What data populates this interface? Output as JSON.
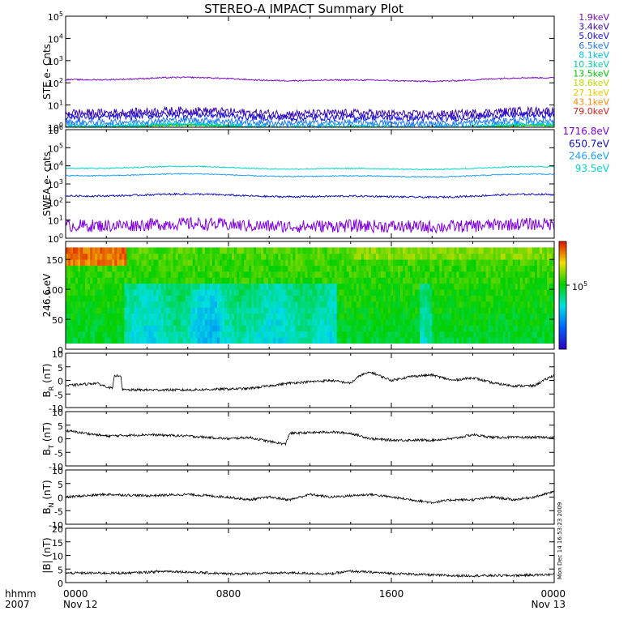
{
  "title": "STEREO-A IMPACT Summary Plot",
  "credit": "Mon Dec 14 16:53:23 2009",
  "chart_data": [
    {
      "panel": "ste",
      "type": "line",
      "ylabel": "STE e- Cnts",
      "yscale": "log",
      "ylim": [
        1,
        100000
      ],
      "yticks": [
        "10^0",
        "10^1",
        "10^2",
        "10^3",
        "10^4",
        "10^5"
      ],
      "legend_position": "right",
      "series": [
        {
          "name": "1.9keV",
          "color": "#7a0cc8",
          "level": 140,
          "noise": 0.03
        },
        {
          "name": "3.4keV",
          "color": "#3a0ab0",
          "level": 4.5,
          "noise": 0.18
        },
        {
          "name": "5.0keV",
          "color": "#1a10e0",
          "level": 3.0,
          "noise": 0.15
        },
        {
          "name": "6.5keV",
          "color": "#1e78ff",
          "level": 1.7,
          "noise": 0.14
        },
        {
          "name": "8.1keV",
          "color": "#00c0e0",
          "level": 1.2,
          "noise": 0.1
        },
        {
          "name": "10.3keV",
          "color": "#00d0a0",
          "level": 1.05,
          "noise": 0.06
        },
        {
          "name": "13.5keV",
          "color": "#00c800",
          "level": 1.0,
          "noise": 0.05
        },
        {
          "name": "18.6keV",
          "color": "#b8dc00",
          "level": 1.0,
          "noise": 0.04
        },
        {
          "name": "27.1keV",
          "color": "#f0c800",
          "level": 1.0,
          "noise": 0.03
        },
        {
          "name": "43.1keV",
          "color": "#ff8c00",
          "level": 1.0,
          "noise": 0.02
        },
        {
          "name": "79.0keV",
          "color": "#e02010",
          "level": 1.0,
          "noise": 0.01
        }
      ]
    },
    {
      "panel": "swea",
      "type": "line",
      "ylabel": "SWEA e- cnts",
      "yscale": "log",
      "ylim": [
        1,
        1000000
      ],
      "yticks": [
        "10^0",
        "10^1",
        "10^2",
        "10^3",
        "10^4",
        "10^5",
        "10^6"
      ],
      "legend_position": "right",
      "series": [
        {
          "name": "1716.8eV",
          "color": "#8000e0",
          "level": 5,
          "noise": 0.35
        },
        {
          "name": "650.7eV",
          "color": "#1010c0",
          "level": 220,
          "noise": 0.05
        },
        {
          "name": "246.6eV",
          "color": "#1ea0ff",
          "level": 2900,
          "noise": 0.03
        },
        {
          "name": "93.5eV",
          "color": "#00d8c8",
          "level": 7500,
          "noise": 0.03
        }
      ]
    },
    {
      "panel": "pad",
      "type": "heatmap",
      "ylabel": "246.6 eV",
      "ylim": [
        0,
        180
      ],
      "yticks": [
        "0",
        "50",
        "100",
        "150"
      ],
      "colorbar_label": "10^5"
    },
    {
      "panel": "br",
      "type": "line",
      "ylabel": "B_R (nT)",
      "ylim": [
        -10,
        10
      ],
      "yticks": [
        "-10",
        "-5",
        "0",
        "5",
        "10"
      ],
      "anchors": [
        [
          0,
          -2
        ],
        [
          1.5,
          -1
        ],
        [
          2.3,
          -3
        ],
        [
          2.4,
          1.5
        ],
        [
          2.7,
          2
        ],
        [
          2.8,
          -3.5
        ],
        [
          6,
          -3.5
        ],
        [
          9,
          -3
        ],
        [
          11,
          -1
        ],
        [
          13,
          0
        ],
        [
          14,
          -1
        ],
        [
          14.5,
          2
        ],
        [
          15,
          3
        ],
        [
          16,
          0
        ],
        [
          17,
          1.5
        ],
        [
          18,
          2
        ],
        [
          19,
          0
        ],
        [
          20,
          1
        ],
        [
          21,
          -1
        ],
        [
          22,
          -2
        ],
        [
          23,
          -2
        ],
        [
          24,
          2
        ]
      ]
    },
    {
      "panel": "bt",
      "type": "line",
      "ylabel": "B_T (nT)",
      "ylim": [
        -10,
        10
      ],
      "yticks": [
        "-10",
        "-5",
        "0",
        "5",
        "10"
      ],
      "anchors": [
        [
          0,
          3
        ],
        [
          2,
          1
        ],
        [
          4,
          1.5
        ],
        [
          6,
          1
        ],
        [
          8,
          0
        ],
        [
          9,
          0.5
        ],
        [
          10,
          -1
        ],
        [
          10.8,
          -2
        ],
        [
          11,
          2
        ],
        [
          13,
          2.5
        ],
        [
          14,
          2
        ],
        [
          15,
          0
        ],
        [
          16,
          -0.5
        ],
        [
          17,
          -0.5
        ],
        [
          18,
          -0.5
        ],
        [
          19,
          0
        ],
        [
          20,
          1.5
        ],
        [
          21,
          0.5
        ],
        [
          22,
          0.5
        ],
        [
          24,
          0.5
        ]
      ]
    },
    {
      "panel": "bn",
      "type": "line",
      "ylabel": "B_N (nT)",
      "ylim": [
        -10,
        10
      ],
      "yticks": [
        "-10",
        "-5",
        "0",
        "5",
        "10"
      ],
      "anchors": [
        [
          0,
          0
        ],
        [
          2,
          1
        ],
        [
          4,
          0.5
        ],
        [
          6,
          1
        ],
        [
          8,
          0
        ],
        [
          9,
          -1
        ],
        [
          10,
          0
        ],
        [
          11,
          -1
        ],
        [
          12,
          1
        ],
        [
          13,
          0
        ],
        [
          15,
          1
        ],
        [
          16,
          0
        ],
        [
          17,
          -1
        ],
        [
          18,
          -2
        ],
        [
          19,
          -1
        ],
        [
          20,
          -1
        ],
        [
          21,
          0
        ],
        [
          22,
          -1
        ],
        [
          23,
          0
        ],
        [
          24,
          2
        ]
      ]
    },
    {
      "panel": "bmag",
      "type": "line",
      "ylabel": "|B| (nT)",
      "ylim": [
        0,
        20
      ],
      "yticks": [
        "0",
        "5",
        "10",
        "15",
        "20"
      ],
      "anchors": [
        [
          0,
          3.5
        ],
        [
          3,
          3.5
        ],
        [
          5,
          4.2
        ],
        [
          8,
          3.2
        ],
        [
          11,
          3.6
        ],
        [
          13,
          3.2
        ],
        [
          14,
          4.2
        ],
        [
          16,
          3.4
        ],
        [
          19,
          2.5
        ],
        [
          22,
          2.6
        ],
        [
          24,
          3
        ]
      ]
    }
  ],
  "xaxis": {
    "row1_label": "hhmm",
    "row2_label": "2007",
    "ticks": [
      {
        "hour": 0,
        "label": "0000",
        "date": "Nov 12"
      },
      {
        "hour": 8,
        "label": "0800",
        "date": ""
      },
      {
        "hour": 16,
        "label": "1600",
        "date": ""
      },
      {
        "hour": 24,
        "label": "0000",
        "date": "Nov 13"
      }
    ],
    "xlim": [
      0,
      24
    ]
  }
}
